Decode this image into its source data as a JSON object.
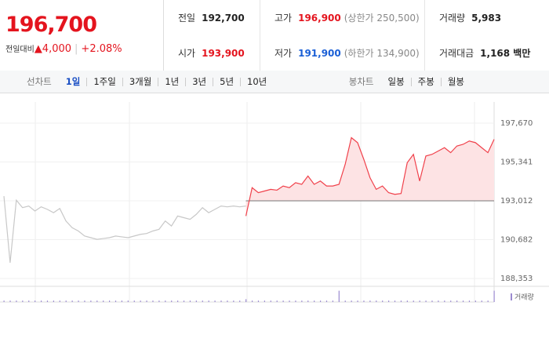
{
  "header": {
    "price": "196,700",
    "change_label": "전일대비",
    "change": "▲4,000",
    "change_pct": "+2.08%"
  },
  "stats": [
    {
      "label": "전일",
      "value": "192,700",
      "color": "#222"
    },
    {
      "label": "고가",
      "value": "196,900",
      "color": "#e4141e",
      "note": "(상한가 250,500)"
    },
    {
      "label": "거래량",
      "value": "5,983",
      "color": "#222"
    },
    {
      "label": "시가",
      "value": "193,900",
      "color": "#e4141e"
    },
    {
      "label": "저가",
      "value": "191,900",
      "color": "#1a5fd6",
      "note": "(하한가 134,900)"
    },
    {
      "label": "거래대금",
      "value": "1,168 백만",
      "color": "#222"
    }
  ],
  "tabs": {
    "line_label": "선차트",
    "line": [
      "1일",
      "1주일",
      "3개월",
      "1년",
      "3년",
      "5년",
      "10년"
    ],
    "active": 0,
    "candle_label": "봉차트",
    "candle": [
      "일봉",
      "주봉",
      "월봉"
    ]
  },
  "chart_data": {
    "type": "line",
    "series": [
      {
        "color": "#c8c8c8",
        "values": [
          193290,
          189300,
          193050,
          192600,
          192700,
          192400,
          192650,
          192500,
          192300,
          192550,
          191800,
          191400,
          191200,
          190900,
          190800,
          190700,
          190750,
          190800,
          190900,
          190850,
          190800,
          190900,
          191000,
          191050,
          191200,
          191300,
          191800,
          191500,
          192100,
          192000,
          191900,
          192200,
          192600,
          192300,
          192500,
          192700,
          192650,
          192700,
          192650,
          192700,
          null,
          null,
          null,
          null,
          null,
          null,
          null,
          null,
          null,
          null,
          null,
          null,
          null,
          null,
          null,
          null,
          null,
          null,
          null,
          null,
          null,
          null,
          null,
          null,
          null,
          null,
          null,
          null,
          null,
          null,
          null,
          null,
          null,
          null,
          null,
          null,
          null,
          null,
          null,
          null
        ]
      },
      {
        "color": "#f0414b",
        "fill": "#fde3e4",
        "values": [
          null,
          null,
          null,
          null,
          null,
          null,
          null,
          null,
          null,
          null,
          null,
          null,
          null,
          null,
          null,
          null,
          null,
          null,
          null,
          null,
          null,
          null,
          null,
          null,
          null,
          null,
          null,
          null,
          null,
          null,
          null,
          null,
          null,
          null,
          null,
          null,
          null,
          null,
          null,
          192100,
          193800,
          193500,
          193600,
          193700,
          193650,
          193900,
          193800,
          194100,
          194000,
          194500,
          194000,
          194200,
          193900,
          193900,
          194000,
          195200,
          196800,
          196500,
          195500,
          194400,
          193700,
          193900,
          193500,
          193400,
          193450,
          195300,
          195800,
          194200,
          195700,
          195800,
          196000,
          196200,
          195900,
          196300,
          196400,
          196600,
          196500,
          196200,
          195900,
          196700
        ]
      }
    ],
    "baseline": 193012,
    "ylim": [
      187883,
      198940
    ],
    "yticks": [
      {
        "value": 197670,
        "label": "197,670"
      },
      {
        "value": 195341,
        "label": "195,341"
      },
      {
        "value": 193012,
        "label": "193,012"
      },
      {
        "value": 190682,
        "label": "190,682"
      },
      {
        "value": 188353,
        "label": "188,353"
      }
    ],
    "volume": {
      "label": "거래량",
      "color": "#9b8ad0",
      "ylim": [
        0,
        10
      ],
      "values": [
        1,
        1,
        1,
        1,
        1,
        1,
        1,
        1,
        1,
        1,
        1,
        1,
        1,
        1,
        1,
        1,
        1,
        1,
        1,
        1,
        1,
        1,
        1,
        1,
        1,
        1,
        1,
        1,
        1,
        1,
        1,
        1,
        1,
        1,
        1,
        1,
        1,
        1,
        1,
        2,
        1,
        1,
        1,
        1,
        1,
        1,
        1,
        1,
        1,
        1,
        1,
        1,
        1,
        1,
        8,
        1,
        1,
        1,
        1,
        1,
        1,
        1,
        1,
        1,
        1,
        1,
        1,
        1,
        1,
        1,
        1,
        1,
        1,
        1,
        1,
        1,
        1,
        1,
        1,
        8
      ]
    }
  }
}
